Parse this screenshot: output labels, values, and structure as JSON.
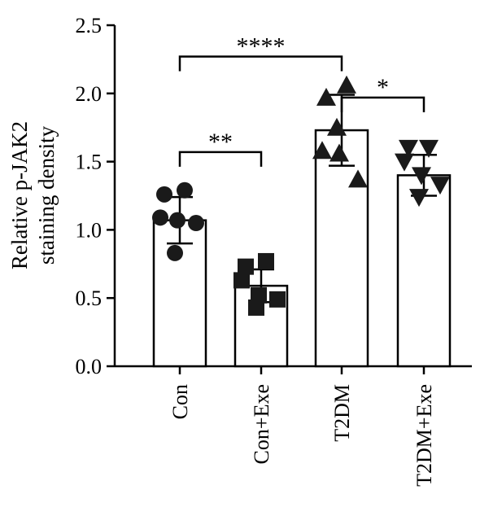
{
  "chart_data": {
    "type": "bar",
    "ylabel_lines": [
      "Relative p-JAK2",
      "staining density"
    ],
    "ylim": [
      0,
      2.5
    ],
    "yticks": [
      "0.0",
      "0.5",
      "1.0",
      "1.5",
      "2.0",
      "2.5"
    ],
    "categories": [
      "Con",
      "Con+Exe",
      "T2DM",
      "T2DM+Exe"
    ],
    "values": [
      1.07,
      0.59,
      1.73,
      1.4
    ],
    "errors": [
      0.17,
      0.12,
      0.26,
      0.15
    ],
    "markers": [
      "circle",
      "square",
      "triangle-up",
      "triangle-down"
    ],
    "points": [
      [
        1.26,
        1.29,
        1.09,
        1.07,
        1.05,
        0.83
      ],
      [
        0.73,
        0.77,
        0.63,
        0.52,
        0.49,
        0.43
      ],
      [
        1.97,
        2.06,
        1.58,
        1.56,
        1.37,
        1.75
      ],
      [
        1.6,
        1.6,
        1.5,
        1.4,
        1.33,
        1.24
      ]
    ],
    "significance": [
      {
        "from": 0,
        "to": 2,
        "label": "****",
        "y": 2.27
      },
      {
        "from": 2,
        "to": 3,
        "label": "*",
        "y": 1.97
      },
      {
        "from": 0,
        "to": 1,
        "label": "**",
        "y": 1.57
      }
    ]
  }
}
